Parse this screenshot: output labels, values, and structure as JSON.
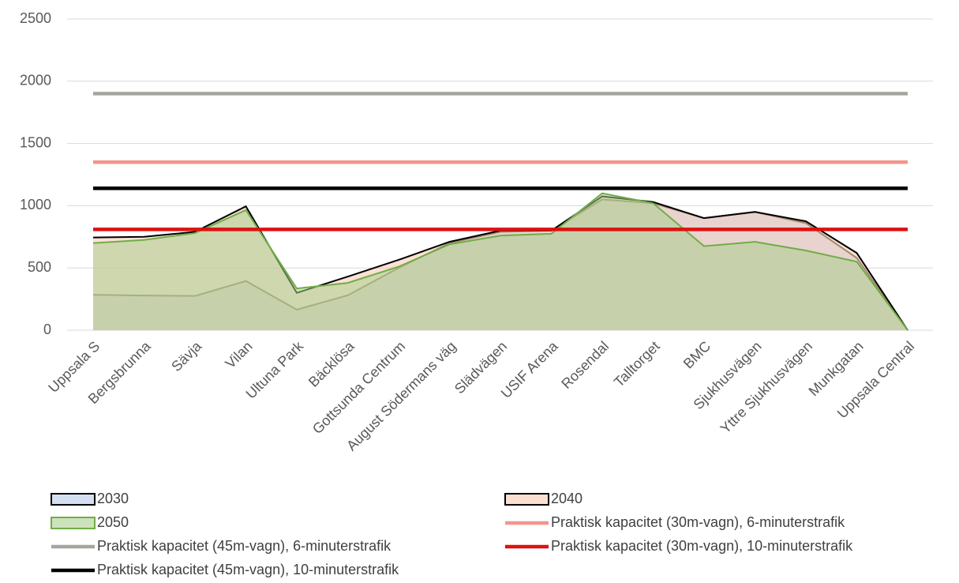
{
  "chart_data": {
    "type": "area",
    "categories": [
      "Uppsala S",
      "Bergsbrunna",
      "Sävja",
      "Vilan",
      "Ultuna Park",
      "Bäcklösa",
      "Gottsunda Centrum",
      "August Södermans väg",
      "Slädvägen",
      "USIF Arena",
      "Rosendal",
      "Talltorget",
      "BMC",
      "Sjukhusvägen",
      "Yttre Sjukhusvägen",
      "Munkgatan",
      "Uppsala Central"
    ],
    "ylim": [
      0,
      2500
    ],
    "yticks": [
      0,
      500,
      1000,
      1500,
      2000,
      2500
    ],
    "grid": true,
    "series": [
      {
        "name": "2030",
        "kind": "area",
        "color": "#b8c9e8",
        "edge_color": "#3a3a1e",
        "values": [
          285,
          278,
          275,
          395,
          165,
          280,
          500,
          700,
          790,
          800,
          1050,
          1020,
          900,
          950,
          860,
          580,
          0
        ]
      },
      {
        "name": "2040",
        "kind": "area",
        "color": "#f8c9b0",
        "edge_color": "#000000",
        "values": [
          745,
          750,
          790,
          995,
          300,
          430,
          565,
          710,
          800,
          800,
          1075,
          1030,
          900,
          950,
          875,
          620,
          0
        ]
      },
      {
        "name": "2050",
        "kind": "area",
        "color": "#a9cf8e",
        "edge_color": "#70ad47",
        "values": [
          700,
          725,
          780,
          965,
          335,
          380,
          510,
          690,
          760,
          775,
          1100,
          1020,
          675,
          710,
          640,
          550,
          0
        ]
      },
      {
        "name": "Praktisk kapacitet (30m-vagn), 6-minuterstrafik",
        "kind": "line",
        "color": "#f4948c",
        "values": [
          1350,
          1350,
          1350,
          1350,
          1350,
          1350,
          1350,
          1350,
          1350,
          1350,
          1350,
          1350,
          1350,
          1350,
          1350,
          1350,
          1350
        ]
      },
      {
        "name": "Praktisk kapacitet (45m-vagn), 6-minuterstrafik",
        "kind": "line",
        "color": "#a5a5a0",
        "values": [
          1900,
          1900,
          1900,
          1900,
          1900,
          1900,
          1900,
          1900,
          1900,
          1900,
          1900,
          1900,
          1900,
          1900,
          1900,
          1900,
          1900
        ]
      },
      {
        "name": "Praktisk kapacitet (30m-vagn), 10-minuterstrafik",
        "kind": "line",
        "color": "#dd1111",
        "values": [
          810,
          810,
          810,
          810,
          810,
          810,
          810,
          810,
          810,
          810,
          810,
          810,
          810,
          810,
          810,
          810,
          810
        ]
      },
      {
        "name": "Praktisk kapacitet (45m-vagn), 10-minuterstrafik",
        "kind": "line",
        "color": "#000000",
        "values": [
          1140,
          1140,
          1140,
          1140,
          1140,
          1140,
          1140,
          1140,
          1140,
          1140,
          1140,
          1140,
          1140,
          1140,
          1140,
          1140,
          1140
        ]
      }
    ]
  }
}
